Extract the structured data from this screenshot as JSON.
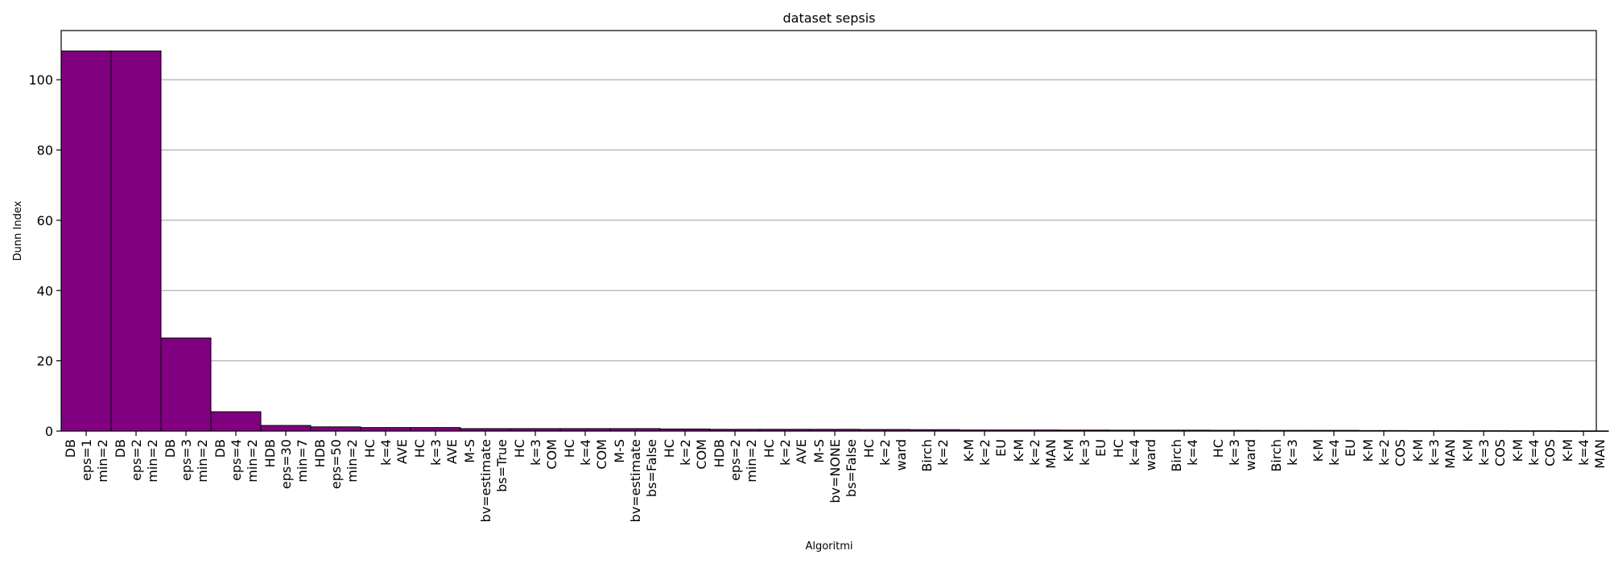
{
  "chart_data": {
    "type": "bar",
    "title": "dataset sepsis",
    "xlabel": "Algoritmi",
    "ylabel": "Dunn Index",
    "ylim": [
      0,
      114
    ],
    "yticks": [
      0,
      20,
      40,
      60,
      80,
      100
    ],
    "grid": "horizontal",
    "bar_color": "#800080",
    "edge_color": "#000000",
    "grid_color": "#b0b0b0",
    "categories": [
      [
        "DB",
        "eps=1",
        "min=2"
      ],
      [
        "DB",
        "eps=2",
        "min=2"
      ],
      [
        "DB",
        "eps=3",
        "min=2"
      ],
      [
        "DB",
        "eps=4",
        "min=2"
      ],
      [
        "HDB",
        "eps=30",
        "min=7"
      ],
      [
        "HDB",
        "eps=50",
        "min=2"
      ],
      [
        "HC",
        "k=4",
        "AVE"
      ],
      [
        "HC",
        "k=3",
        "AVE"
      ],
      [
        "M-S",
        "bv=estimate",
        "bs=True"
      ],
      [
        "HC",
        "k=3",
        "COM"
      ],
      [
        "HC",
        "k=4",
        "COM"
      ],
      [
        "M-S",
        "bv=estimate",
        "bs=False"
      ],
      [
        "HC",
        "k=2",
        "COM"
      ],
      [
        "HDB",
        "eps=2",
        "min=2"
      ],
      [
        "HC",
        "k=2",
        "AVE"
      ],
      [
        "M-S",
        "bv=NONE",
        "bs=False"
      ],
      [
        "HC",
        "k=2",
        "ward"
      ],
      [
        "Birch",
        "k=2"
      ],
      [
        "K-M",
        "k=2",
        "EU"
      ],
      [
        "K-M",
        "k=2",
        "MAN"
      ],
      [
        "K-M",
        "k=3",
        "EU"
      ],
      [
        "HC",
        "k=4",
        "ward"
      ],
      [
        "Birch",
        "k=4"
      ],
      [
        "HC",
        "k=3",
        "ward"
      ],
      [
        "Birch",
        "k=3"
      ],
      [
        "K-M",
        "k=4",
        "EU"
      ],
      [
        "K-M",
        "k=2",
        "COS"
      ],
      [
        "K-M",
        "k=3",
        "MAN"
      ],
      [
        "K-M",
        "k=3",
        "COS"
      ],
      [
        "K-M",
        "k=4",
        "COS"
      ],
      [
        "K-M",
        "k=4",
        "MAN"
      ]
    ],
    "values": [
      108.2,
      108.2,
      26.5,
      5.5,
      1.6,
      1.2,
      1.0,
      1.0,
      0.7,
      0.7,
      0.7,
      0.7,
      0.6,
      0.5,
      0.5,
      0.5,
      0.45,
      0.4,
      0.3,
      0.3,
      0.28,
      0.25,
      0.25,
      0.22,
      0.2,
      0.2,
      0.15,
      0.12,
      0.1,
      0.08,
      0.05
    ]
  }
}
